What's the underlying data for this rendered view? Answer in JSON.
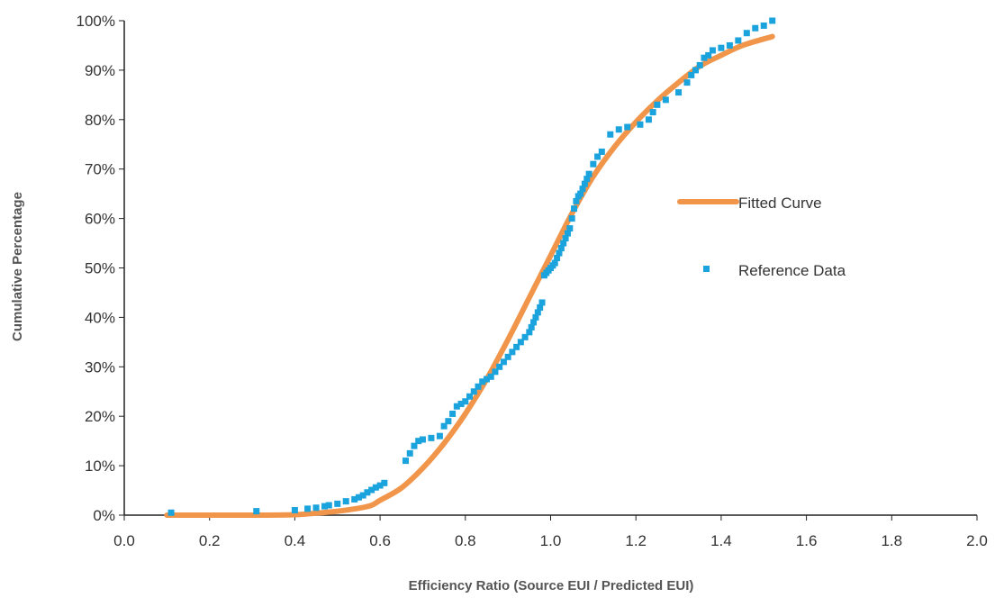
{
  "chart_data": {
    "type": "scatter",
    "xlabel": "Efficiency Ratio (Source EUI / Predicted EUI)",
    "ylabel": "Cumulative Percentage",
    "xlim": [
      0.0,
      2.0
    ],
    "ylim": [
      0,
      100
    ],
    "x_ticks": [
      "0.0",
      "0.2",
      "0.4",
      "0.6",
      "0.8",
      "1.0",
      "1.2",
      "1.4",
      "1.6",
      "1.8",
      "2.0"
    ],
    "y_ticks": [
      "0%",
      "10%",
      "20%",
      "30%",
      "40%",
      "50%",
      "60%",
      "70%",
      "80%",
      "90%",
      "100%"
    ],
    "grid": false,
    "legend_position": "right",
    "colors": {
      "fitted": "#F0954A",
      "reference": "#1AA3DC",
      "axis": "#222222"
    },
    "series": [
      {
        "name": "Fitted Curve",
        "kind": "line",
        "x": [
          0.1,
          0.3,
          0.4,
          0.45,
          0.5,
          0.55,
          0.58,
          0.6,
          0.65,
          0.7,
          0.75,
          0.8,
          0.85,
          0.9,
          0.95,
          1.0,
          1.05,
          1.1,
          1.15,
          1.2,
          1.25,
          1.3,
          1.35,
          1.4,
          1.45,
          1.52
        ],
        "y": [
          0,
          0,
          0.1,
          0.4,
          0.8,
          1.4,
          2.0,
          3.0,
          5.5,
          9.5,
          14.5,
          20.5,
          27.5,
          35.5,
          44.0,
          52.5,
          61.0,
          68.5,
          74.5,
          79.5,
          83.8,
          87.5,
          90.8,
          93.0,
          95.0,
          96.8
        ]
      },
      {
        "name": "Reference Data",
        "kind": "points",
        "x": [
          0.11,
          0.31,
          0.4,
          0.43,
          0.45,
          0.47,
          0.48,
          0.5,
          0.52,
          0.54,
          0.55,
          0.56,
          0.57,
          0.58,
          0.59,
          0.6,
          0.61,
          0.66,
          0.67,
          0.68,
          0.69,
          0.7,
          0.72,
          0.74,
          0.75,
          0.76,
          0.77,
          0.78,
          0.79,
          0.8,
          0.81,
          0.82,
          0.83,
          0.84,
          0.85,
          0.86,
          0.87,
          0.88,
          0.89,
          0.9,
          0.91,
          0.92,
          0.93,
          0.94,
          0.95,
          0.955,
          0.96,
          0.965,
          0.97,
          0.975,
          0.98,
          0.985,
          0.99,
          0.995,
          1.0,
          1.005,
          1.01,
          1.015,
          1.02,
          1.025,
          1.03,
          1.035,
          1.04,
          1.045,
          1.05,
          1.055,
          1.06,
          1.065,
          1.07,
          1.075,
          1.08,
          1.085,
          1.09,
          1.1,
          1.11,
          1.12,
          1.14,
          1.16,
          1.18,
          1.21,
          1.23,
          1.24,
          1.25,
          1.27,
          1.3,
          1.32,
          1.33,
          1.34,
          1.35,
          1.36,
          1.37,
          1.38,
          1.4,
          1.42,
          1.44,
          1.46,
          1.48,
          1.5,
          1.52
        ],
        "y": [
          0.5,
          0.8,
          1.0,
          1.3,
          1.5,
          1.8,
          2.0,
          2.3,
          2.8,
          3.2,
          3.6,
          4.0,
          4.6,
          5.1,
          5.6,
          6.0,
          6.5,
          11.0,
          12.5,
          14.0,
          15.0,
          15.3,
          15.6,
          16.0,
          18.0,
          19.0,
          20.5,
          22.0,
          22.5,
          23.0,
          24.0,
          25.0,
          26.0,
          27.0,
          27.5,
          28.0,
          29.0,
          30.0,
          31.0,
          32.0,
          33.0,
          34.0,
          35.0,
          36.0,
          37.0,
          38.0,
          39.0,
          40.0,
          41.0,
          42.0,
          43.0,
          48.5,
          49.0,
          49.5,
          50.0,
          50.5,
          51.0,
          52.0,
          53.0,
          54.0,
          55.0,
          56.0,
          57.0,
          58.0,
          60.0,
          62.0,
          63.5,
          64.5,
          65.0,
          66.0,
          67.0,
          68.0,
          69.0,
          71.0,
          72.5,
          73.5,
          77.0,
          78.0,
          78.5,
          79.0,
          80.0,
          81.5,
          83.0,
          84.0,
          85.5,
          87.5,
          89.0,
          90.0,
          91.0,
          92.5,
          93.0,
          94.0,
          94.5,
          95.0,
          96.0,
          97.5,
          98.5,
          99.0,
          100.0
        ]
      }
    ]
  }
}
